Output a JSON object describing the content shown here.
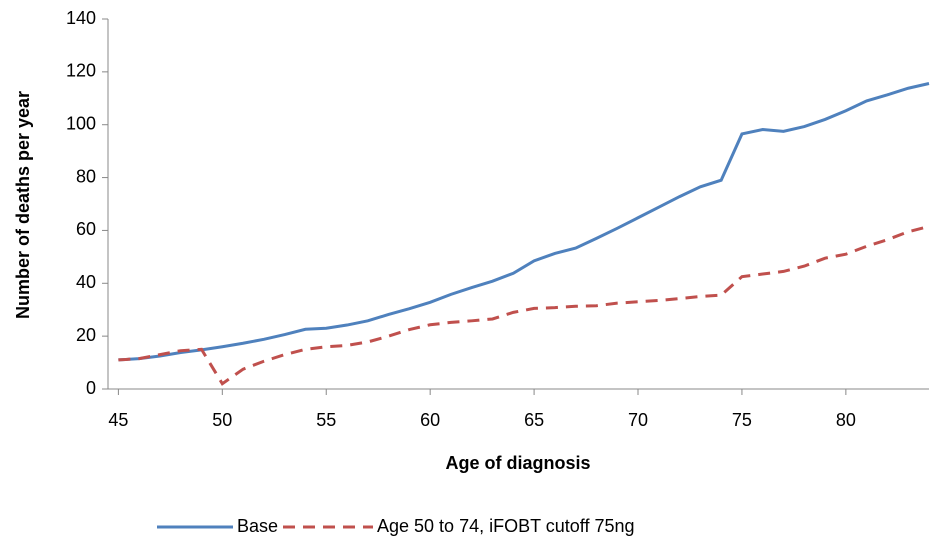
{
  "chart_data": {
    "type": "line",
    "x_label": "Age of diagnosis",
    "y_label": "Number of deaths per year",
    "x": [
      45,
      46,
      47,
      48,
      49,
      50,
      51,
      52,
      53,
      54,
      55,
      56,
      57,
      58,
      59,
      60,
      61,
      62,
      63,
      64,
      65,
      66,
      67,
      68,
      69,
      70,
      71,
      72,
      73,
      74,
      75,
      76,
      77,
      78,
      79,
      80,
      81,
      82,
      83,
      84
    ],
    "series": [
      {
        "name": "Base",
        "color": "#4f81bd",
        "dash": false,
        "values": [
          11,
          11.5,
          12.5,
          13.8,
          14.8,
          16,
          17.3,
          18.8,
          20.6,
          22.6,
          23,
          24.2,
          25.8,
          28.2,
          30.4,
          32.8,
          35.8,
          38.4,
          40.8,
          43.8,
          48.5,
          51.3,
          53.3,
          57,
          60.8,
          64.8,
          68.8,
          72.8,
          76.5,
          79,
          96.5,
          98.2,
          97.5,
          99.3,
          102,
          105.3,
          109,
          111.3,
          113.8,
          115.6
        ]
      },
      {
        "name": "Age 50 to 74,  iFOBT cutoff 75ng",
        "color": "#c0504d",
        "dash": true,
        "values": [
          11,
          11.5,
          13,
          14.5,
          15,
          2,
          7.5,
          10.5,
          13,
          15,
          16,
          16.5,
          17.8,
          20,
          22.5,
          24.3,
          25.2,
          25.8,
          26.5,
          29,
          30.5,
          30.8,
          31.3,
          31.5,
          32.5,
          33,
          33.5,
          34.2,
          35,
          35.5,
          42.5,
          43.5,
          44.5,
          46.5,
          49.5,
          51,
          54,
          56.5,
          59.5,
          61.5
        ]
      }
    ],
    "xlim": [
      44.5,
      84
    ],
    "xticks": [
      45,
      50,
      55,
      60,
      65,
      70,
      75,
      80
    ],
    "ylim": [
      0,
      140
    ],
    "yticks": [
      0,
      20,
      40,
      60,
      80,
      100,
      120,
      140
    ]
  }
}
